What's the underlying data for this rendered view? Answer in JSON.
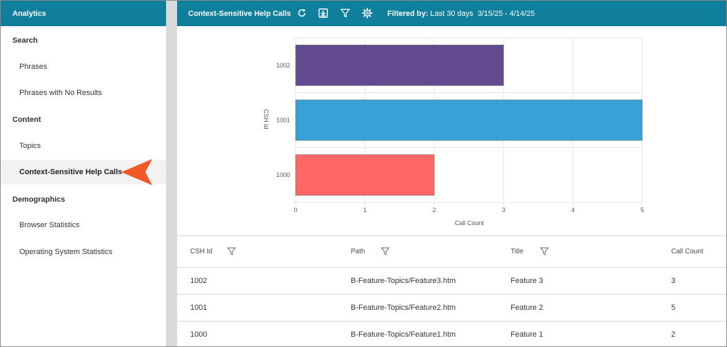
{
  "sidebar": {
    "header": "Analytics",
    "sections": [
      {
        "label": "Search",
        "items": [
          "Phrases",
          "Phrases with No Results"
        ]
      },
      {
        "label": "Content",
        "items": [
          "Topics",
          "Context-Sensitive Help Calls"
        ]
      },
      {
        "label": "Demographics",
        "items": [
          "Browser Statistics",
          "Operating System Statistics"
        ]
      }
    ],
    "active_item": "Context-Sensitive Help Calls"
  },
  "toolbar": {
    "title": "Context-Sensitive Help Calls",
    "icons": [
      "refresh-icon",
      "download-icon",
      "filter-icon",
      "settings-icon"
    ],
    "filter_label": "Filtered by:",
    "filter_value": "Last 30 days",
    "date_range": "3/15/25 - 4/14/25"
  },
  "chart_data": {
    "type": "bar",
    "orientation": "horizontal",
    "categories": [
      "1002",
      "1001",
      "1000"
    ],
    "values": [
      3,
      5,
      2
    ],
    "colors": [
      "#614a8e",
      "#3aa0d8",
      "#ff6666"
    ],
    "xlabel": "Call Count",
    "ylabel": "CSH Id",
    "xlim": [
      0,
      5
    ],
    "xticks": [
      0,
      1,
      2,
      3,
      4,
      5
    ],
    "grid": true
  },
  "table": {
    "columns": [
      {
        "label": "CSH Id",
        "filterable": true
      },
      {
        "label": "Path",
        "filterable": true
      },
      {
        "label": "Title",
        "filterable": true
      },
      {
        "label": "Call Count",
        "filterable": false
      }
    ],
    "rows": [
      [
        "1002",
        "B-Feature-Topics/Feature3.htm",
        "Feature 3",
        "3"
      ],
      [
        "1001",
        "B-Feature-Topics/Feature2.htm",
        "Feature 2",
        "5"
      ],
      [
        "1000",
        "B-Feature-Topics/Feature1.htm",
        "Feature 1",
        "2"
      ]
    ]
  },
  "colors": {
    "header_bg": "#0f7f9c",
    "callout": "#f05a28",
    "splitter": "#d9d9d9"
  }
}
